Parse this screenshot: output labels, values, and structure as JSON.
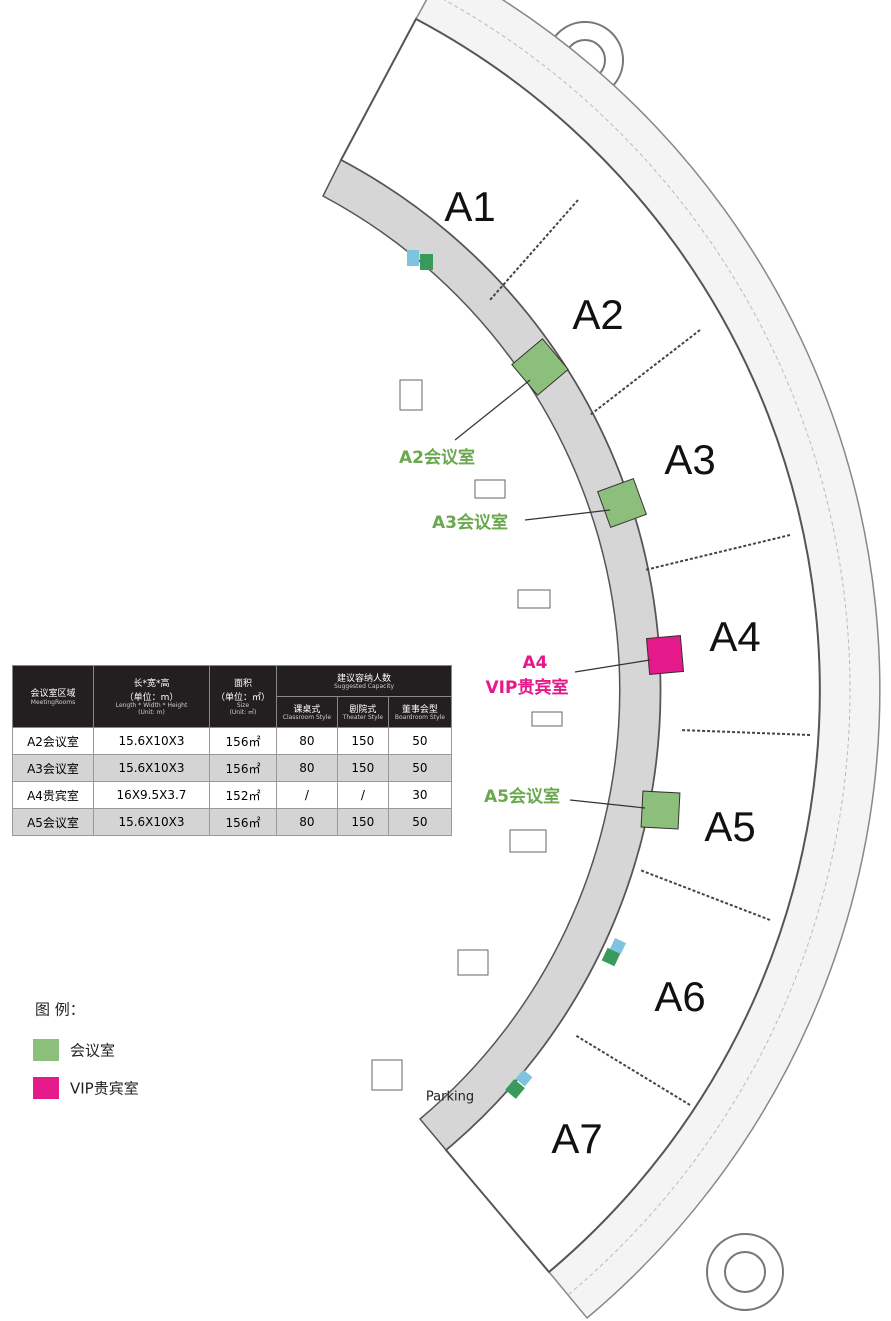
{
  "halls": [
    "A1",
    "A2",
    "A3",
    "A4",
    "A5",
    "A6",
    "A7"
  ],
  "rooms": [
    {
      "lines": [
        "A2会议室"
      ]
    },
    {
      "lines": [
        "A3会议室"
      ]
    },
    {
      "lines": [
        "A4",
        "VIP贵宾室"
      ]
    },
    {
      "lines": [
        "A5会议室"
      ]
    }
  ],
  "parking": "Parking",
  "table": {
    "header": {
      "area": [
        "会议室区域",
        "MeetingRooms"
      ],
      "dimensions": [
        "长*宽*高",
        "（单位：m）",
        "Length * Width * Height",
        "(Unit: m)"
      ],
      "size": [
        "面积",
        "（单位：㎡）",
        "Size",
        "(Unit: ㎡)"
      ],
      "capacity": [
        "建议容纳人数",
        "Suggested Capacity"
      ],
      "styles": [
        [
          "课桌式",
          "Classroom Style"
        ],
        [
          "剧院式",
          "Theater Style"
        ],
        [
          "董事会型",
          "Boardroom Style"
        ]
      ]
    },
    "rows": [
      [
        "A2会议室",
        "15.6X10X3",
        "156㎡",
        "80",
        "150",
        "50"
      ],
      [
        "A3会议室",
        "15.6X10X3",
        "156㎡",
        "80",
        "150",
        "50"
      ],
      [
        "A4贵宾室",
        "16X9.5X3.7",
        "152㎡",
        "/",
        "/",
        "30"
      ],
      [
        "A5会议室",
        "15.6X10X3",
        "156㎡",
        "80",
        "150",
        "50"
      ]
    ]
  },
  "legend": {
    "title": "图 例：",
    "items": [
      "会议室",
      "VIP贵宾室"
    ]
  }
}
